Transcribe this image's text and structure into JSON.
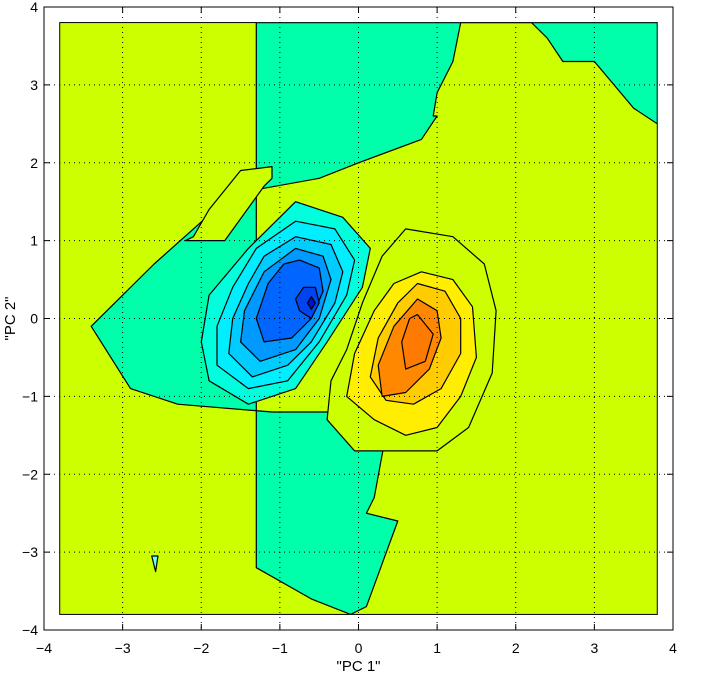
{
  "chart_data": {
    "type": "contour",
    "title": "",
    "xlabel": "\"PC 1\"",
    "ylabel": "\"PC 2\"",
    "xlim": [
      -4,
      4
    ],
    "ylim": [
      -4,
      4
    ],
    "xticks": [
      -4,
      -3,
      -2,
      -1,
      0,
      1,
      2,
      3,
      4
    ],
    "yticks": [
      -4,
      -3,
      -2,
      -1,
      0,
      1,
      2,
      3,
      4
    ],
    "xtick_labels": [
      "−4",
      "−3",
      "−2",
      "−1",
      "0",
      "1",
      "2",
      "3",
      "4"
    ],
    "ytick_labels": [
      "−4",
      "−3",
      "−2",
      "−1",
      "0",
      "1",
      "2",
      "3",
      "4"
    ],
    "data_extent": {
      "x": [
        -3.8,
        3.8
      ],
      "y": [
        -3.8,
        3.8
      ]
    },
    "grid": true,
    "background_color": "#ccff00",
    "regions": [
      {
        "name": "upper-right-teal",
        "color": "#00ffaa",
        "x": [
          1.3,
          2.4,
          3.8,
          3.8,
          3.5,
          3.0,
          2.6,
          2.4,
          2.2,
          1.8,
          1.3,
          1.2,
          1.0,
          0.95,
          1.0,
          0.8,
          0.0,
          -0.5,
          -1.6,
          -2.6,
          -3.4,
          -2.9,
          -2.3,
          -1.1,
          0.4,
          0.2,
          0.1,
          0.5,
          0.5,
          0.1,
          -0.1,
          -0.6,
          -1.3,
          -1.3
        ],
        "y": [
          3.8,
          3.8,
          3.8,
          2.5,
          2.7,
          3.3,
          3.3,
          3.6,
          3.8,
          3.8,
          3.8,
          3.3,
          2.9,
          2.6,
          2.6,
          2.3,
          2.0,
          1.8,
          1.6,
          0.7,
          -0.1,
          -0.9,
          -1.1,
          -1.2,
          -1.2,
          -2.3,
          -2.5,
          -2.6,
          -2.6,
          -3.7,
          -3.8,
          -3.6,
          -3.2,
          3.8
        ]
      },
      {
        "name": "upper-left-teal-lobe",
        "color": "#ccff00",
        "x": [
          -2.1,
          -1.9,
          -1.5,
          -1.1,
          -1.1,
          -1.2,
          -1.7,
          -2.2
        ],
        "y": [
          1.05,
          1.4,
          1.9,
          1.95,
          1.8,
          1.7,
          1.0,
          1.0
        ]
      },
      {
        "name": "small-cyan-spike",
        "color": "#66ffff",
        "x": [
          -2.63,
          -2.55,
          -2.58
        ],
        "y": [
          -3.05,
          -3.05,
          -3.25
        ]
      },
      {
        "name": "neg-level-1",
        "color": "#00ffdd",
        "x": [
          -0.8,
          -0.2,
          0.15,
          0.05,
          -0.4,
          -0.8,
          -1.4,
          -1.9,
          -2.0,
          -1.9,
          -1.4
        ],
        "y": [
          1.5,
          1.3,
          0.9,
          0.4,
          -0.3,
          -0.9,
          -1.1,
          -0.8,
          -0.3,
          0.3,
          0.9
        ]
      },
      {
        "name": "neg-level-2",
        "color": "#00eeff",
        "x": [
          -0.8,
          -0.3,
          -0.05,
          -0.15,
          -0.5,
          -0.9,
          -1.4,
          -1.8,
          -1.8,
          -1.6,
          -1.3
        ],
        "y": [
          1.25,
          1.15,
          0.75,
          0.3,
          -0.3,
          -0.8,
          -0.9,
          -0.6,
          -0.1,
          0.4,
          0.9
        ]
      },
      {
        "name": "neg-level-3",
        "color": "#00ccff",
        "x": [
          -0.8,
          -0.35,
          -0.2,
          -0.3,
          -0.6,
          -0.9,
          -1.35,
          -1.65,
          -1.6,
          -1.4,
          -1.2
        ],
        "y": [
          1.05,
          0.95,
          0.6,
          0.2,
          -0.3,
          -0.6,
          -0.75,
          -0.45,
          0.0,
          0.45,
          0.8
        ]
      },
      {
        "name": "neg-level-4",
        "color": "#0099ff",
        "x": [
          -0.8,
          -0.45,
          -0.35,
          -0.5,
          -0.8,
          -1.25,
          -1.5,
          -1.45,
          -1.2
        ],
        "y": [
          0.9,
          0.8,
          0.5,
          0.0,
          -0.4,
          -0.55,
          -0.3,
          0.1,
          0.6
        ]
      },
      {
        "name": "neg-level-5",
        "color": "#0066ff",
        "x": [
          -0.75,
          -0.5,
          -0.45,
          -0.6,
          -0.85,
          -1.2,
          -1.3,
          -1.15,
          -0.95
        ],
        "y": [
          0.75,
          0.65,
          0.35,
          0.0,
          -0.25,
          -0.3,
          0.0,
          0.45,
          0.7
        ]
      },
      {
        "name": "neg-level-6",
        "color": "#0044ee",
        "x": [
          -0.55,
          -0.5,
          -0.6,
          -0.75,
          -0.8,
          -0.7
        ],
        "y": [
          0.4,
          0.2,
          -0.0,
          0.1,
          0.25,
          0.4
        ]
      },
      {
        "name": "neg-level-7",
        "color": "#0011cc",
        "x": [
          -0.6,
          -0.55,
          -0.6,
          -0.65
        ],
        "y": [
          0.28,
          0.2,
          0.12,
          0.2
        ]
      },
      {
        "name": "pos-level-1",
        "color": "#ccff00",
        "x": [
          0.6,
          1.2,
          1.6,
          1.75,
          1.7,
          1.4,
          1.0,
          0.5,
          -0.05,
          -0.4,
          -0.35,
          -0.15,
          0.05,
          0.3
        ],
        "y": [
          1.15,
          1.05,
          0.7,
          0.1,
          -0.7,
          -1.4,
          -1.7,
          -1.7,
          -1.7,
          -1.3,
          -0.8,
          -0.4,
          0.2,
          0.8
        ]
      },
      {
        "name": "pos-level-2",
        "color": "#ffee00",
        "x": [
          0.8,
          1.2,
          1.45,
          1.5,
          1.3,
          1.0,
          0.6,
          0.2,
          -0.15,
          -0.05,
          0.2,
          0.45
        ],
        "y": [
          0.6,
          0.5,
          0.15,
          -0.5,
          -1.0,
          -1.4,
          -1.5,
          -1.3,
          -1.0,
          -0.45,
          0.1,
          0.45
        ]
      },
      {
        "name": "pos-level-3",
        "color": "#ffcc00",
        "x": [
          0.75,
          1.1,
          1.3,
          1.3,
          1.05,
          0.7,
          0.35,
          0.15,
          0.25,
          0.5
        ],
        "y": [
          0.45,
          0.35,
          0.0,
          -0.45,
          -0.9,
          -1.1,
          -1.05,
          -0.75,
          -0.25,
          0.2
        ]
      },
      {
        "name": "pos-level-4",
        "color": "#ff8800",
        "x": [
          0.75,
          1.0,
          1.05,
          0.9,
          0.6,
          0.3,
          0.25,
          0.45
        ],
        "y": [
          0.25,
          0.1,
          -0.25,
          -0.65,
          -0.95,
          -1.0,
          -0.6,
          -0.1
        ]
      },
      {
        "name": "pos-level-5",
        "color": "#ff7a00",
        "x": [
          0.75,
          0.95,
          0.85,
          0.6,
          0.55,
          0.65
        ],
        "y": [
          0.05,
          -0.2,
          -0.55,
          -0.65,
          -0.3,
          0.0
        ]
      }
    ]
  }
}
